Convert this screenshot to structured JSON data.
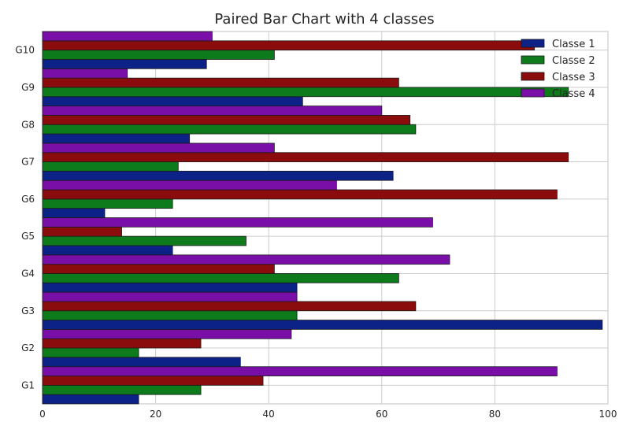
{
  "chart_data": {
    "type": "bar",
    "orientation": "horizontal",
    "title": "Paired Bar Chart with 4 classes",
    "xlabel": "",
    "ylabel": "",
    "xlim": [
      0,
      100
    ],
    "xticks": [
      0,
      20,
      40,
      60,
      80,
      100
    ],
    "grid": true,
    "legend_position": "top-right",
    "categories": [
      "G1",
      "G2",
      "G3",
      "G4",
      "G5",
      "G6",
      "G7",
      "G8",
      "G9",
      "G10"
    ],
    "series": [
      {
        "name": "Classe 1",
        "color": "#0c2286",
        "values": [
          17,
          35,
          99,
          45,
          23,
          11,
          62,
          26,
          46,
          29
        ]
      },
      {
        "name": "Classe 2",
        "color": "#0d7a1c",
        "values": [
          28,
          17,
          45,
          63,
          36,
          23,
          24,
          66,
          93,
          41
        ]
      },
      {
        "name": "Classe 3",
        "color": "#8a0c0c",
        "values": [
          39,
          28,
          66,
          41,
          14,
          91,
          93,
          65,
          63,
          87
        ]
      },
      {
        "name": "Classe 4",
        "color": "#7a0fa8",
        "values": [
          91,
          44,
          45,
          72,
          69,
          52,
          41,
          60,
          15,
          30
        ]
      }
    ]
  }
}
